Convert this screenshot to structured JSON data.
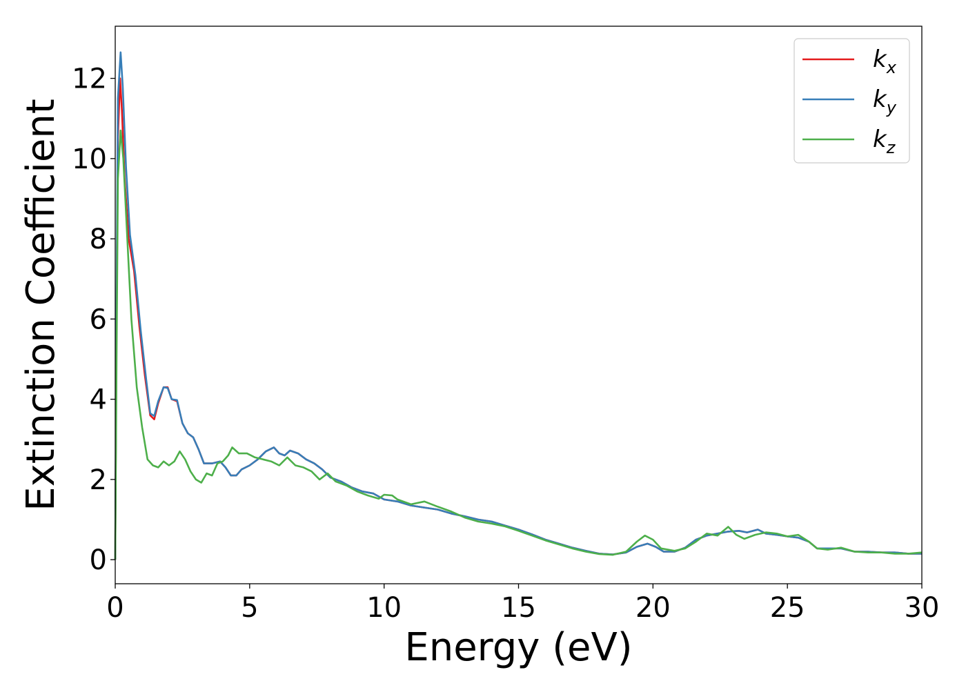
{
  "chart_data": {
    "type": "line",
    "title": "",
    "xlabel": "Energy (eV)",
    "ylabel": "Extinction Coefficient",
    "xlim": [
      0,
      30
    ],
    "ylim": [
      -0.6,
      13.3
    ],
    "xticks": [
      0,
      5,
      10,
      15,
      20,
      25,
      30
    ],
    "yticks": [
      0,
      2,
      4,
      6,
      8,
      10,
      12
    ],
    "grid": false,
    "legend_position": "top-right",
    "series": [
      {
        "name": "k_x",
        "label_base": "k",
        "label_sub": "x",
        "color": "#e41a1c",
        "points": [
          [
            0,
            0
          ],
          [
            0.05,
            6.0
          ],
          [
            0.1,
            10.5
          ],
          [
            0.18,
            12.0
          ],
          [
            0.25,
            11.2
          ],
          [
            0.35,
            9.5
          ],
          [
            0.5,
            8.0
          ],
          [
            0.7,
            7.2
          ],
          [
            0.9,
            5.8
          ],
          [
            1.1,
            4.6
          ],
          [
            1.3,
            3.6
          ],
          [
            1.45,
            3.5
          ],
          [
            1.6,
            3.9
          ],
          [
            1.8,
            4.3
          ],
          [
            1.95,
            4.3
          ],
          [
            2.1,
            4.0
          ],
          [
            2.3,
            3.95
          ],
          [
            2.5,
            3.4
          ],
          [
            2.7,
            3.15
          ],
          [
            2.9,
            3.05
          ],
          [
            3.1,
            2.75
          ],
          [
            3.3,
            2.4
          ],
          [
            3.6,
            2.4
          ],
          [
            3.9,
            2.45
          ],
          [
            4.1,
            2.3
          ],
          [
            4.3,
            2.1
          ],
          [
            4.5,
            2.1
          ],
          [
            4.7,
            2.25
          ],
          [
            5.0,
            2.35
          ],
          [
            5.3,
            2.5
          ],
          [
            5.6,
            2.7
          ],
          [
            5.9,
            2.8
          ],
          [
            6.1,
            2.65
          ],
          [
            6.3,
            2.6
          ],
          [
            6.5,
            2.72
          ],
          [
            6.8,
            2.65
          ],
          [
            7.1,
            2.5
          ],
          [
            7.4,
            2.4
          ],
          [
            7.7,
            2.25
          ],
          [
            8.0,
            2.05
          ],
          [
            8.4,
            1.95
          ],
          [
            8.8,
            1.8
          ],
          [
            9.2,
            1.7
          ],
          [
            9.6,
            1.65
          ],
          [
            10.0,
            1.5
          ],
          [
            10.5,
            1.45
          ],
          [
            11.0,
            1.35
          ],
          [
            11.5,
            1.3
          ],
          [
            12.0,
            1.25
          ],
          [
            12.5,
            1.15
          ],
          [
            13.0,
            1.08
          ],
          [
            13.5,
            1.0
          ],
          [
            14.0,
            0.95
          ],
          [
            14.5,
            0.85
          ],
          [
            15.0,
            0.75
          ],
          [
            15.5,
            0.63
          ],
          [
            16.0,
            0.5
          ],
          [
            16.5,
            0.4
          ],
          [
            17.0,
            0.3
          ],
          [
            17.5,
            0.22
          ],
          [
            18.0,
            0.15
          ],
          [
            18.5,
            0.13
          ],
          [
            19.0,
            0.18
          ],
          [
            19.4,
            0.32
          ],
          [
            19.8,
            0.4
          ],
          [
            20.1,
            0.32
          ],
          [
            20.4,
            0.2
          ],
          [
            20.8,
            0.2
          ],
          [
            21.2,
            0.3
          ],
          [
            21.6,
            0.5
          ],
          [
            22.0,
            0.6
          ],
          [
            22.4,
            0.65
          ],
          [
            22.8,
            0.7
          ],
          [
            23.2,
            0.72
          ],
          [
            23.5,
            0.68
          ],
          [
            23.9,
            0.75
          ],
          [
            24.2,
            0.65
          ],
          [
            24.6,
            0.62
          ],
          [
            25.0,
            0.58
          ],
          [
            25.4,
            0.55
          ],
          [
            25.8,
            0.45
          ],
          [
            26.1,
            0.28
          ],
          [
            26.5,
            0.28
          ],
          [
            27.0,
            0.28
          ],
          [
            27.5,
            0.2
          ],
          [
            28.0,
            0.2
          ],
          [
            28.5,
            0.18
          ],
          [
            29.0,
            0.18
          ],
          [
            29.5,
            0.15
          ],
          [
            30.0,
            0.15
          ]
        ]
      },
      {
        "name": "k_y",
        "label_base": "k",
        "label_sub": "y",
        "color": "#377eb8",
        "points": [
          [
            0,
            0
          ],
          [
            0.05,
            6.5
          ],
          [
            0.1,
            11.5
          ],
          [
            0.2,
            12.65
          ],
          [
            0.28,
            11.8
          ],
          [
            0.4,
            9.8
          ],
          [
            0.55,
            8.1
          ],
          [
            0.75,
            7.1
          ],
          [
            0.95,
            5.7
          ],
          [
            1.15,
            4.5
          ],
          [
            1.3,
            3.65
          ],
          [
            1.45,
            3.58
          ],
          [
            1.6,
            3.95
          ],
          [
            1.8,
            4.3
          ],
          [
            1.95,
            4.28
          ],
          [
            2.1,
            4.0
          ],
          [
            2.3,
            3.98
          ],
          [
            2.5,
            3.4
          ],
          [
            2.7,
            3.15
          ],
          [
            2.9,
            3.05
          ],
          [
            3.1,
            2.75
          ],
          [
            3.3,
            2.4
          ],
          [
            3.6,
            2.4
          ],
          [
            3.9,
            2.45
          ],
          [
            4.1,
            2.3
          ],
          [
            4.3,
            2.1
          ],
          [
            4.5,
            2.1
          ],
          [
            4.7,
            2.25
          ],
          [
            5.0,
            2.35
          ],
          [
            5.3,
            2.5
          ],
          [
            5.6,
            2.7
          ],
          [
            5.9,
            2.8
          ],
          [
            6.1,
            2.65
          ],
          [
            6.3,
            2.6
          ],
          [
            6.5,
            2.72
          ],
          [
            6.8,
            2.65
          ],
          [
            7.1,
            2.5
          ],
          [
            7.4,
            2.4
          ],
          [
            7.7,
            2.25
          ],
          [
            8.0,
            2.05
          ],
          [
            8.4,
            1.95
          ],
          [
            8.8,
            1.8
          ],
          [
            9.2,
            1.7
          ],
          [
            9.6,
            1.65
          ],
          [
            10.0,
            1.5
          ],
          [
            10.5,
            1.45
          ],
          [
            11.0,
            1.35
          ],
          [
            11.5,
            1.3
          ],
          [
            12.0,
            1.25
          ],
          [
            12.5,
            1.15
          ],
          [
            13.0,
            1.08
          ],
          [
            13.5,
            1.0
          ],
          [
            14.0,
            0.95
          ],
          [
            14.5,
            0.85
          ],
          [
            15.0,
            0.75
          ],
          [
            15.5,
            0.63
          ],
          [
            16.0,
            0.5
          ],
          [
            16.5,
            0.4
          ],
          [
            17.0,
            0.3
          ],
          [
            17.5,
            0.22
          ],
          [
            18.0,
            0.15
          ],
          [
            18.5,
            0.13
          ],
          [
            19.0,
            0.18
          ],
          [
            19.4,
            0.32
          ],
          [
            19.8,
            0.4
          ],
          [
            20.1,
            0.32
          ],
          [
            20.4,
            0.2
          ],
          [
            20.8,
            0.2
          ],
          [
            21.2,
            0.3
          ],
          [
            21.6,
            0.5
          ],
          [
            22.0,
            0.6
          ],
          [
            22.4,
            0.65
          ],
          [
            22.8,
            0.7
          ],
          [
            23.2,
            0.72
          ],
          [
            23.5,
            0.68
          ],
          [
            23.9,
            0.75
          ],
          [
            24.2,
            0.65
          ],
          [
            24.6,
            0.62
          ],
          [
            25.0,
            0.58
          ],
          [
            25.4,
            0.55
          ],
          [
            25.8,
            0.45
          ],
          [
            26.1,
            0.28
          ],
          [
            26.5,
            0.28
          ],
          [
            27.0,
            0.28
          ],
          [
            27.5,
            0.2
          ],
          [
            28.0,
            0.2
          ],
          [
            28.5,
            0.18
          ],
          [
            29.0,
            0.18
          ],
          [
            29.5,
            0.15
          ],
          [
            30.0,
            0.15
          ]
        ]
      },
      {
        "name": "k_z",
        "label_base": "k",
        "label_sub": "z",
        "color": "#4daf4a",
        "points": [
          [
            0,
            0
          ],
          [
            0.05,
            5.0
          ],
          [
            0.1,
            9.5
          ],
          [
            0.2,
            10.7
          ],
          [
            0.3,
            10.0
          ],
          [
            0.45,
            8.0
          ],
          [
            0.6,
            6.0
          ],
          [
            0.8,
            4.3
          ],
          [
            1.0,
            3.3
          ],
          [
            1.2,
            2.5
          ],
          [
            1.4,
            2.35
          ],
          [
            1.6,
            2.3
          ],
          [
            1.8,
            2.45
          ],
          [
            2.0,
            2.35
          ],
          [
            2.2,
            2.45
          ],
          [
            2.4,
            2.7
          ],
          [
            2.6,
            2.5
          ],
          [
            2.8,
            2.2
          ],
          [
            3.0,
            2.0
          ],
          [
            3.2,
            1.92
          ],
          [
            3.4,
            2.15
          ],
          [
            3.6,
            2.1
          ],
          [
            3.8,
            2.4
          ],
          [
            4.0,
            2.45
          ],
          [
            4.2,
            2.6
          ],
          [
            4.35,
            2.8
          ],
          [
            4.6,
            2.65
          ],
          [
            4.9,
            2.65
          ],
          [
            5.2,
            2.55
          ],
          [
            5.5,
            2.5
          ],
          [
            5.8,
            2.45
          ],
          [
            6.1,
            2.35
          ],
          [
            6.4,
            2.55
          ],
          [
            6.7,
            2.35
          ],
          [
            7.0,
            2.3
          ],
          [
            7.3,
            2.2
          ],
          [
            7.6,
            2.0
          ],
          [
            7.9,
            2.15
          ],
          [
            8.2,
            1.95
          ],
          [
            8.6,
            1.85
          ],
          [
            9.0,
            1.7
          ],
          [
            9.4,
            1.6
          ],
          [
            9.8,
            1.52
          ],
          [
            10.0,
            1.62
          ],
          [
            10.3,
            1.6
          ],
          [
            10.5,
            1.5
          ],
          [
            11.0,
            1.38
          ],
          [
            11.5,
            1.45
          ],
          [
            12.0,
            1.32
          ],
          [
            12.5,
            1.2
          ],
          [
            13.0,
            1.05
          ],
          [
            13.5,
            0.95
          ],
          [
            14.0,
            0.9
          ],
          [
            14.5,
            0.83
          ],
          [
            15.0,
            0.72
          ],
          [
            15.5,
            0.6
          ],
          [
            16.0,
            0.48
          ],
          [
            16.5,
            0.38
          ],
          [
            17.0,
            0.28
          ],
          [
            17.5,
            0.2
          ],
          [
            18.0,
            0.14
          ],
          [
            18.5,
            0.12
          ],
          [
            19.0,
            0.2
          ],
          [
            19.4,
            0.45
          ],
          [
            19.7,
            0.6
          ],
          [
            20.0,
            0.5
          ],
          [
            20.3,
            0.28
          ],
          [
            20.8,
            0.22
          ],
          [
            21.2,
            0.28
          ],
          [
            21.6,
            0.45
          ],
          [
            22.0,
            0.65
          ],
          [
            22.4,
            0.6
          ],
          [
            22.8,
            0.82
          ],
          [
            23.1,
            0.62
          ],
          [
            23.4,
            0.52
          ],
          [
            23.8,
            0.62
          ],
          [
            24.2,
            0.68
          ],
          [
            24.6,
            0.65
          ],
          [
            25.0,
            0.58
          ],
          [
            25.4,
            0.62
          ],
          [
            25.8,
            0.45
          ],
          [
            26.1,
            0.28
          ],
          [
            26.5,
            0.25
          ],
          [
            27.0,
            0.3
          ],
          [
            27.5,
            0.2
          ],
          [
            28.0,
            0.18
          ],
          [
            28.5,
            0.18
          ],
          [
            29.0,
            0.15
          ],
          [
            29.5,
            0.15
          ],
          [
            30.0,
            0.18
          ]
        ]
      }
    ]
  }
}
